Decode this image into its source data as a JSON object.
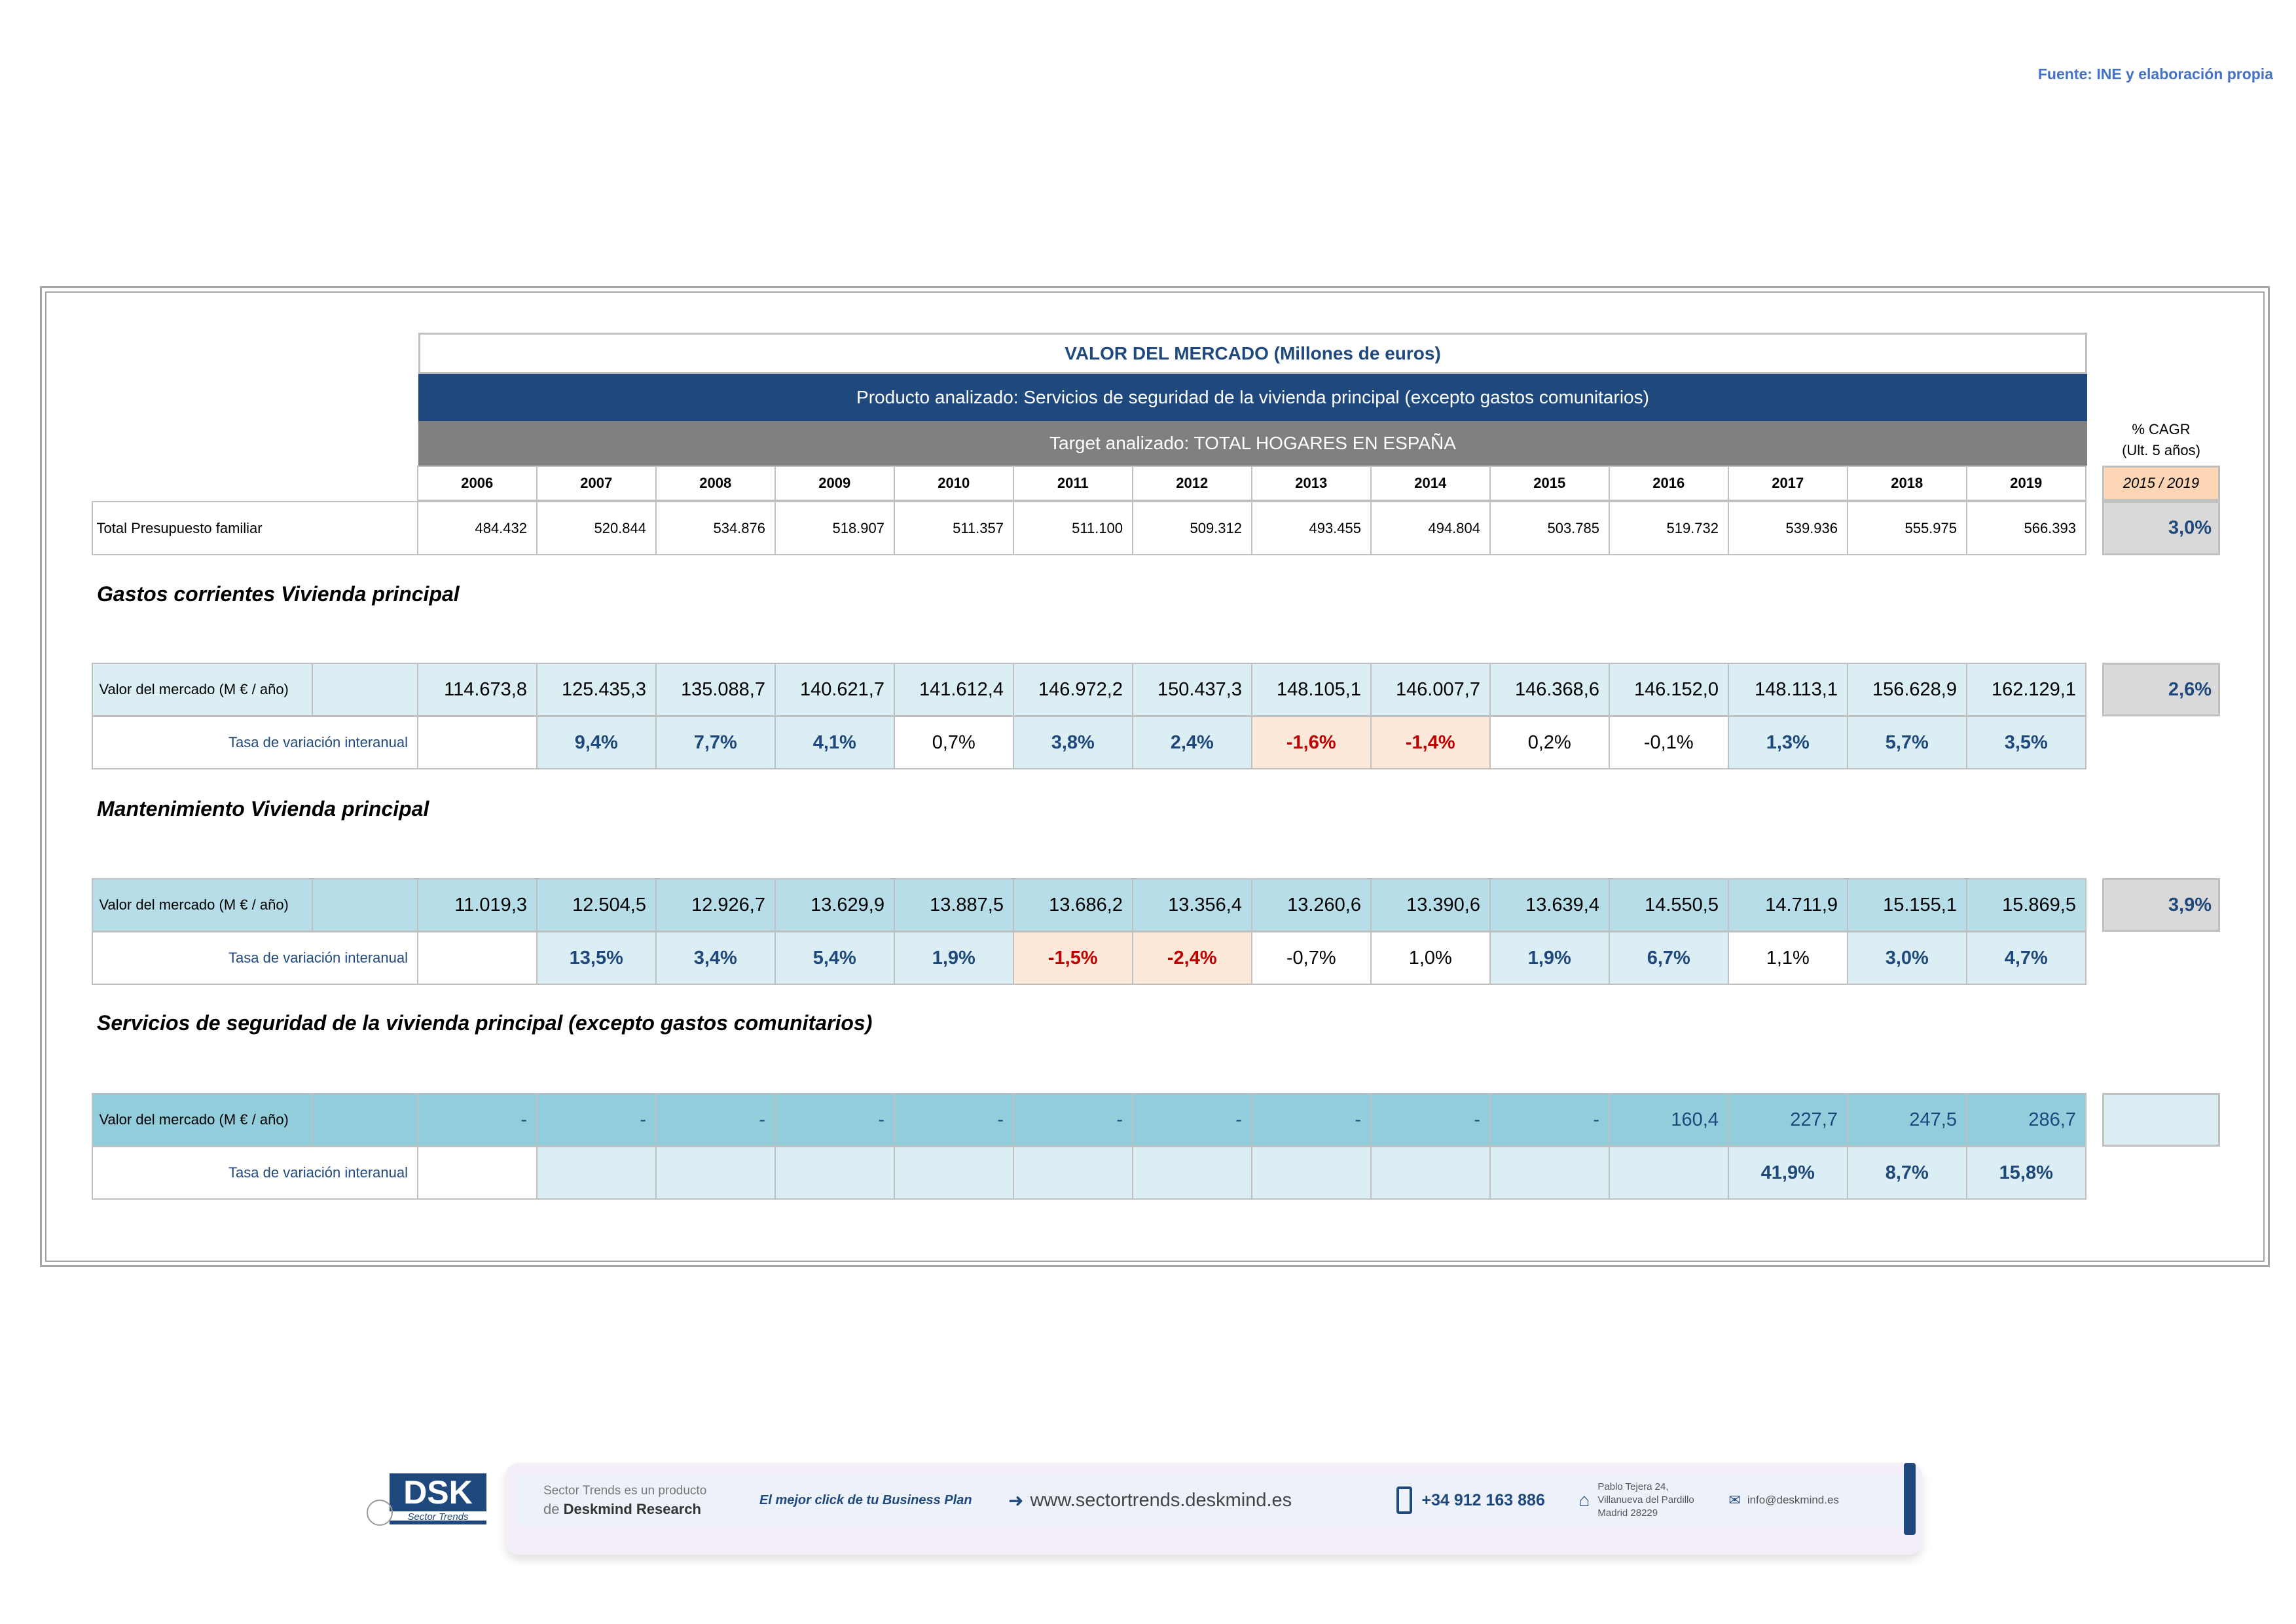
{
  "source": "Fuente: INE y elaboración propia",
  "header": {
    "title": "VALOR DEL MERCADO (Millones de euros)",
    "product": "Producto analizado: Servicios de seguridad de la vivienda principal (excepto gastos comunitarios)",
    "target": "Target analizado: TOTAL HOGARES EN ESPAÑA",
    "cagr_label": "% CAGR",
    "cagr_sub": "(Ult. 5 años)",
    "cagr_period": "2015 / 2019"
  },
  "years": [
    "2006",
    "2007",
    "2008",
    "2009",
    "2010",
    "2011",
    "2012",
    "2013",
    "2014",
    "2015",
    "2016",
    "2017",
    "2018",
    "2019"
  ],
  "total": {
    "label": "Total Presupuesto familiar",
    "values": [
      "484.432",
      "520.844",
      "534.876",
      "518.907",
      "511.357",
      "511.100",
      "509.312",
      "493.455",
      "494.804",
      "503.785",
      "519.732",
      "539.936",
      "555.975",
      "566.393"
    ],
    "cagr": "3,0%"
  },
  "sections": [
    {
      "title": "Gastos corrientes Vivienda principal",
      "value_label": "Valor del mercado (M € / año)",
      "rate_label": "Tasa de variación interanual",
      "fill": "#DAEEF3",
      "values": [
        "114.673,8",
        "125.435,3",
        "135.088,7",
        "140.621,7",
        "141.612,4",
        "146.972,2",
        "150.437,3",
        "148.105,1",
        "146.007,7",
        "146.368,6",
        "146.152,0",
        "148.113,1",
        "156.628,9",
        "162.129,1"
      ],
      "rates": [
        "",
        "9,4%",
        "7,7%",
        "4,1%",
        "0,7%",
        "3,8%",
        "2,4%",
        "-1,6%",
        "-1,4%",
        "0,2%",
        "-0,1%",
        "1,3%",
        "5,7%",
        "3,5%"
      ],
      "cagr": "2,6%"
    },
    {
      "title": "Mantenimiento Vivienda principal",
      "value_label": "Valor del mercado (M € / año)",
      "rate_label": "Tasa de variación interanual",
      "fill": "#B7DEE8",
      "values": [
        "11.019,3",
        "12.504,5",
        "12.926,7",
        "13.629,9",
        "13.887,5",
        "13.686,2",
        "13.356,4",
        "13.260,6",
        "13.390,6",
        "13.639,4",
        "14.550,5",
        "14.711,9",
        "15.155,1",
        "15.869,5"
      ],
      "rates": [
        "",
        "13,5%",
        "3,4%",
        "5,4%",
        "1,9%",
        "-1,5%",
        "-2,4%",
        "-0,7%",
        "1,0%",
        "1,9%",
        "6,7%",
        "1,1%",
        "3,0%",
        "4,7%"
      ],
      "cagr": "3,9%"
    },
    {
      "title": "Servicios de seguridad de la vivienda principal (excepto gastos comunitarios)",
      "value_label": "Valor del mercado (M € / año)",
      "rate_label": "Tasa de variación interanual",
      "fill": "#92CDDC",
      "values": [
        "-",
        "-",
        "-",
        "-",
        "-",
        "-",
        "-",
        "-",
        "-",
        "-",
        "160,4",
        "227,7",
        "247,5",
        "286,7"
      ],
      "rates": [
        "",
        "",
        "",
        "",
        "",
        "",
        "",
        "",
        "",
        "",
        "",
        "41,9%",
        "8,7%",
        "15,8%"
      ],
      "cagr": ""
    }
  ],
  "colors": {
    "blue_text": "#1F497D",
    "red_text": "#C00000",
    "pos_fill": "#DAEEF3",
    "neg_fill": "#FDE9D9"
  },
  "footer": {
    "logo": "DSK",
    "logo_sub": "Sector Trends",
    "line1": "Sector Trends es un producto",
    "line2_pre": "de",
    "line2_brand": "Deskmind Research",
    "slogan": "El mejor click de tu Business Plan",
    "url": "www.sectortrends.deskmind.es",
    "phone": "+34 912 163 886",
    "addr1": "Pablo Tejera 24,",
    "addr2": "Villanueva del Pardillo",
    "addr3": "Madrid 28229",
    "email": "info@deskmind.es"
  }
}
